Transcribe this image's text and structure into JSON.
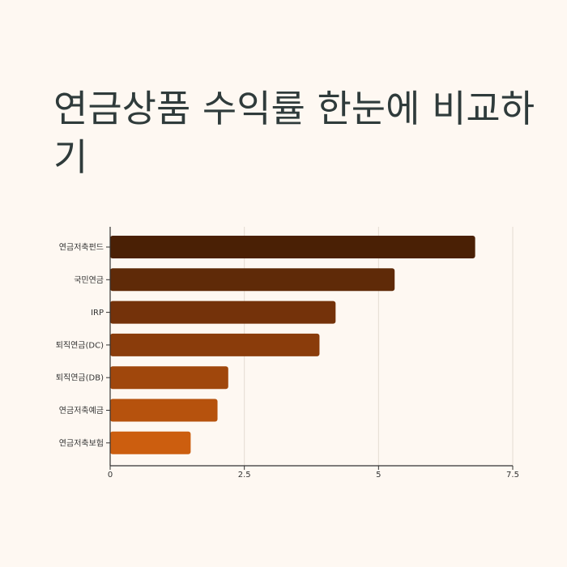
{
  "page": {
    "title": "연금상품 수익률 한눈에 비교하기"
  },
  "chart_data": {
    "type": "bar",
    "orientation": "horizontal",
    "categories": [
      "연금저축펀드",
      "국민연금",
      "IRP",
      "퇴직연금(DC)",
      "퇴직연금(DB)",
      "연금저축예금",
      "연금저축보험"
    ],
    "values": [
      6.8,
      5.3,
      4.2,
      3.9,
      2.2,
      2.0,
      1.5
    ],
    "colors": [
      "#4a2005",
      "#5f2a08",
      "#74320a",
      "#8a3c0b",
      "#a0470c",
      "#b6520d",
      "#cc5e0f"
    ],
    "xlim": [
      0,
      7.5
    ],
    "xticks": [
      0,
      2.5,
      5,
      7.5
    ],
    "xtick_labels": [
      "0",
      "2.5",
      "5",
      "7.5"
    ],
    "xlabel": "",
    "ylabel": "",
    "grid": "vertical",
    "legend": "none"
  }
}
